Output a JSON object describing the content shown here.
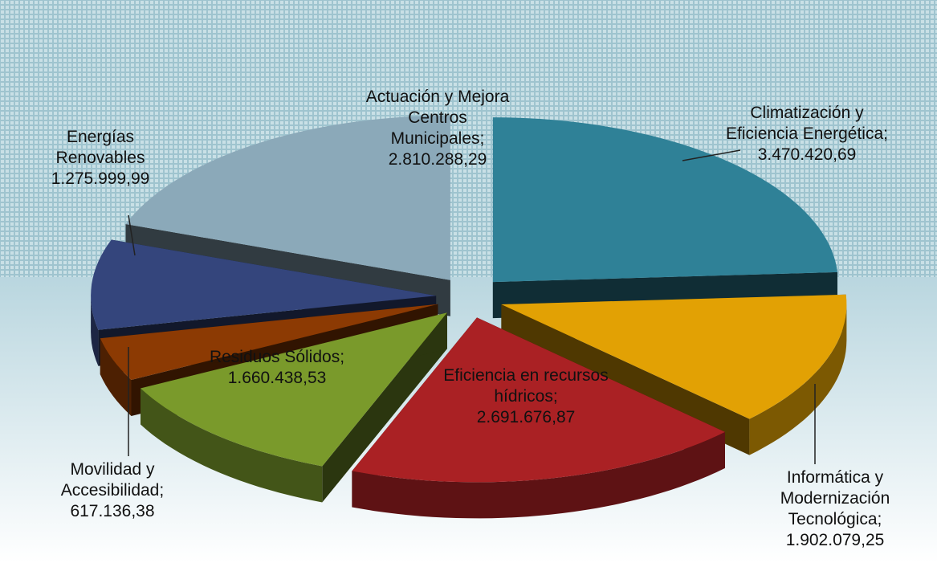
{
  "chart_data": {
    "type": "pie3d",
    "categories": [
      "Climatización y Eficiencia Energética;",
      "Informática y Modernización Tecnológica;",
      "Eficiencia en recursos hídricos;",
      "Residuos Sólidos;",
      "Movilidad y Accesibilidad;",
      "Energías Renovables",
      "Actuación y Mejora Centros Municipales;"
    ],
    "values": [
      3470420.69,
      1902079.25,
      2691676.87,
      1660438.53,
      617136.38,
      1275999.99,
      2810288.29
    ],
    "value_labels": [
      "3.470.420,69",
      "1.902.079,25",
      "2.691.676,87",
      "1.660.438,53",
      "617.136,38",
      "1.275.999,99",
      "2.810.288,29"
    ],
    "colors": [
      "#2f8197",
      "#e2a104",
      "#aa2124",
      "#7a9a2b",
      "#8c3a03",
      "#34457c",
      "#8ba9b9"
    ]
  }
}
